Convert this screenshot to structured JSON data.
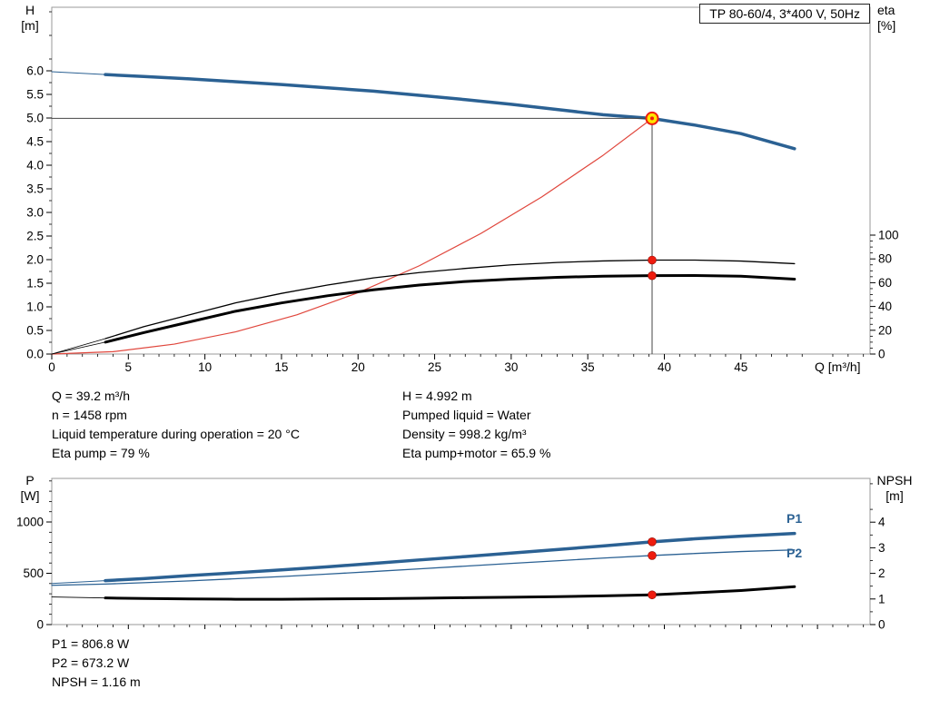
{
  "title_box": "TP 80-60/4, 3*400 V, 50Hz",
  "labels": {
    "top_left_axis": [
      "H",
      "[m]"
    ],
    "top_right_axis": [
      "eta",
      "[%]"
    ],
    "x_axis": "Q [m³/h]",
    "bottom_left_axis": [
      "P",
      "[W]"
    ],
    "bottom_right_axis": [
      "NPSH",
      "[m]"
    ],
    "p1": "P1",
    "p2": "P2"
  },
  "info": {
    "left": [
      "Q = 39.2 m³/h",
      "n = 1458 rpm",
      "Liquid temperature during operation = 20 °C",
      "Eta pump = 79 %"
    ],
    "right": [
      "H = 4.992 m",
      "Pumped liquid = Water",
      "Density = 998.2 kg/m³",
      "Eta pump+motor = 65.9 %"
    ]
  },
  "bottom_info": [
    "P1 = 806.8 W",
    "P2 = 673.2 W",
    "NPSH = 1.16 m"
  ],
  "colors": {
    "curve_blue": "#2b6193",
    "curve_red": "#e0463c",
    "curve_black": "#000000",
    "marker_red": "#ee1c0f",
    "marker_yellow": "#ffe400",
    "frame_gray": "#999999",
    "duty_line": "#444444"
  },
  "chart_data": [
    {
      "type": "line",
      "title": "TP 80-60/4, 3*400 V, 50Hz",
      "xlabel": "Q [m³/h]",
      "ylabel_left": "H [m]",
      "ylabel_right": "eta [%]",
      "grid": false,
      "x_range": [
        0,
        53.4
      ],
      "x_ticks": [
        0,
        5,
        10,
        15,
        20,
        25,
        30,
        35,
        40,
        45
      ],
      "y_left_range": [
        0,
        7.35
      ],
      "y_left_ticks": [
        0.0,
        0.5,
        1.0,
        1.5,
        2.0,
        2.5,
        3.0,
        3.5,
        4.0,
        4.5,
        5.0,
        5.5,
        6.0
      ],
      "y_right_ticks": [
        0,
        20,
        40,
        60,
        80,
        100
      ],
      "duty_point": {
        "q": 39.2,
        "h": 4.992
      },
      "markers": [
        {
          "axis": "eta",
          "q": 39.2,
          "value": 79
        },
        {
          "axis": "eta",
          "q": 39.2,
          "value": 65.9
        }
      ],
      "series": [
        {
          "name": "pump-curve-lead",
          "axis": "H",
          "color": "blue",
          "width": 1,
          "x": [
            0,
            3.5
          ],
          "y": [
            5.98,
            5.92
          ]
        },
        {
          "name": "pump-curve",
          "axis": "H",
          "color": "blue",
          "width": 3.5,
          "x": [
            3.5,
            6,
            9,
            12,
            15,
            18,
            21,
            24,
            27,
            30,
            33,
            36,
            39.2,
            42,
            45,
            48.5
          ],
          "y": [
            5.92,
            5.88,
            5.83,
            5.77,
            5.71,
            5.64,
            5.57,
            5.48,
            5.39,
            5.29,
            5.18,
            5.07,
            4.99,
            4.85,
            4.67,
            4.35
          ]
        },
        {
          "name": "system-curve",
          "axis": "H",
          "color": "red",
          "width": 1.2,
          "x": [
            0,
            4,
            8,
            12,
            16,
            20,
            24,
            28,
            32,
            36,
            39.2
          ],
          "y": [
            0,
            0.05,
            0.21,
            0.47,
            0.83,
            1.3,
            1.87,
            2.55,
            3.33,
            4.21,
            4.99
          ]
        },
        {
          "name": "eta-pump-lead",
          "axis": "eta",
          "color": "black",
          "width": 0.8,
          "x": [
            0,
            3.5
          ],
          "y": [
            0,
            13
          ]
        },
        {
          "name": "eta-pump-curve",
          "axis": "eta",
          "color": "black",
          "width": 1.3,
          "x": [
            3.5,
            6,
            9,
            12,
            15,
            18,
            21,
            24,
            27,
            30,
            33,
            36,
            39.2,
            42,
            45,
            48.5
          ],
          "y": [
            13,
            23,
            33,
            43,
            51,
            58,
            64,
            68.5,
            72,
            75,
            77,
            78.3,
            79,
            79,
            78.2,
            76
          ]
        },
        {
          "name": "eta-pump-motor-lead",
          "axis": "eta",
          "color": "black",
          "width": 0.8,
          "x": [
            0,
            3.5
          ],
          "y": [
            0,
            10
          ]
        },
        {
          "name": "eta-pump-motor-curve",
          "axis": "eta",
          "color": "black",
          "width": 3,
          "x": [
            3.5,
            6,
            9,
            12,
            15,
            18,
            21,
            24,
            27,
            30,
            33,
            36,
            39.2,
            42,
            45,
            48.5
          ],
          "y": [
            10,
            18,
            27,
            36,
            43,
            49,
            54,
            58,
            61,
            63,
            64.5,
            65.5,
            65.9,
            66,
            65.5,
            63
          ]
        }
      ]
    },
    {
      "type": "line",
      "xlabel": "Q [m³/h]",
      "ylabel_left": "P [W]",
      "ylabel_right": "NPSH [m]",
      "grid": false,
      "x_range": [
        0,
        53.4
      ],
      "y_left_range": [
        0,
        1425
      ],
      "y_left_ticks": [
        0,
        500,
        1000
      ],
      "y_right_range": [
        0,
        5.7
      ],
      "y_right_ticks": [
        0,
        1,
        2,
        3,
        4
      ],
      "markers": [
        {
          "axis": "P",
          "q": 39.2,
          "value": 806.8
        },
        {
          "axis": "P",
          "q": 39.2,
          "value": 673.2
        },
        {
          "axis": "NPSH",
          "q": 39.2,
          "value": 1.16
        }
      ],
      "series": [
        {
          "name": "p1-lead",
          "axis": "P",
          "color": "blue",
          "width": 1,
          "x": [
            0,
            3.5
          ],
          "y": [
            400,
            428
          ]
        },
        {
          "name": "p1-curve",
          "axis": "P",
          "color": "blue",
          "width": 3.5,
          "label": "P1",
          "x": [
            3.5,
            6,
            9,
            12,
            15,
            18,
            21,
            24,
            27,
            30,
            33,
            36,
            39.2,
            42,
            45,
            48.5
          ],
          "y": [
            428,
            448,
            478,
            505,
            533,
            563,
            596,
            630,
            663,
            697,
            731,
            767,
            806.8,
            836,
            862,
            888
          ]
        },
        {
          "name": "p2-curve",
          "axis": "P",
          "color": "blue",
          "width": 1.3,
          "label": "P2",
          "x": [
            0,
            3.5,
            6,
            9,
            12,
            15,
            18,
            21,
            24,
            27,
            30,
            33,
            36,
            39.2,
            42,
            45,
            48.5
          ],
          "y": [
            383,
            395,
            408,
            426,
            447,
            468,
            492,
            517,
            543,
            570,
            596,
            622,
            648,
            673.2,
            693,
            712,
            728
          ]
        },
        {
          "name": "npsh-lead",
          "axis": "NPSH",
          "color": "black",
          "width": 0.8,
          "x": [
            0,
            3.5
          ],
          "y": [
            1.08,
            1.04
          ]
        },
        {
          "name": "npsh-curve",
          "axis": "NPSH",
          "color": "black",
          "width": 3,
          "x": [
            3.5,
            6,
            9,
            12,
            15,
            18,
            21,
            24,
            27,
            30,
            33,
            36,
            39.2,
            42,
            45,
            48.5
          ],
          "y": [
            1.04,
            1.02,
            1.0,
            0.99,
            0.99,
            1.0,
            1.01,
            1.03,
            1.05,
            1.07,
            1.09,
            1.12,
            1.16,
            1.24,
            1.33,
            1.48
          ]
        }
      ]
    }
  ]
}
